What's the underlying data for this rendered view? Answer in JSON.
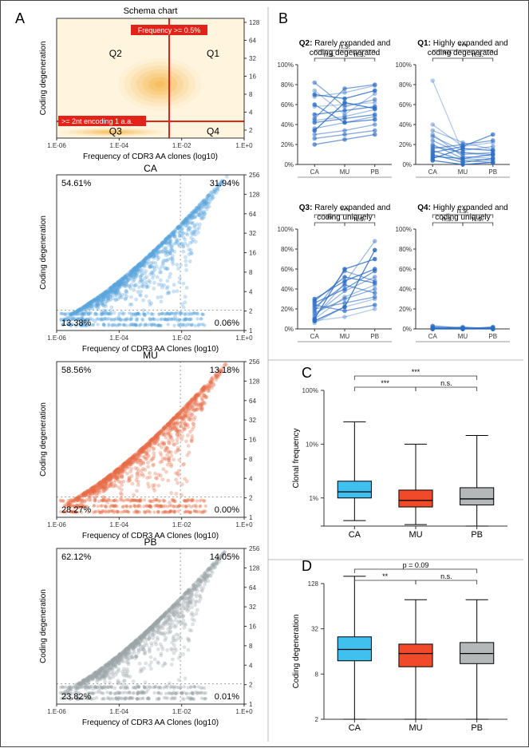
{
  "panelA": {
    "label": "A",
    "schema": {
      "title": "Schema chart",
      "xlabel": "Frequency of CDR3 AA clones (log10)",
      "ylabel": "Coding degeneration",
      "xticks": [
        "1.E-06",
        "1.E-04",
        "1.E-02",
        "1.E+0"
      ],
      "yticks": [
        "2",
        "4",
        "8",
        "16",
        "32",
        "64",
        "128"
      ],
      "vlabel": "Frequency >= 0.5%",
      "hlabel": ">= 2nt encoding 1 a.a.",
      "q": [
        "Q2",
        "Q1",
        "Q3",
        "Q4"
      ],
      "bg": "#fff5de",
      "blob_color": "#f5a623",
      "line_color": "#e2231a"
    },
    "scatters": [
      {
        "name": "CA",
        "color": "#5aa6dd",
        "pct": {
          "q2": "54.61%",
          "q1": "31.94%",
          "q3": "13.38%",
          "q4": "0.06%"
        }
      },
      {
        "name": "MU",
        "color": "#e66e46",
        "pct": {
          "q2": "58.56%",
          "q1": "13.18%",
          "q3": "28.27%",
          "q4": "0.00%"
        }
      },
      {
        "name": "PB",
        "color": "#9aa5a7",
        "pct": {
          "q2": "62.12%",
          "q1": "14.05%",
          "q3": "23.82%",
          "q4": "0.01%"
        }
      }
    ],
    "scatter_xlabel": "Frequency of CDR3 AA Clones (log10)",
    "scatter_ylabel": "Coding degeneration",
    "scatter_xticks": [
      "1.E-06",
      "1.E-04",
      "1.E-02",
      "1.E+0"
    ],
    "scatter_yticks": [
      "1",
      "2",
      "4",
      "8",
      "16",
      "32",
      "64",
      "128",
      "256"
    ],
    "guide_color": "#888"
  },
  "panelB": {
    "label": "B",
    "groups": [
      "CA",
      "MU",
      "PB"
    ],
    "yticks": [
      "0%",
      "20%",
      "40%",
      "60%",
      "80%",
      "100%"
    ],
    "line_color": "#2b6cc4",
    "dot_color": "#2b6cc4",
    "subs": [
      {
        "key": "Q2",
        "title1": "Q2: ",
        "title2": "Rarely expanded and",
        "title3": "coding degenerated",
        "sig": [
          "n.s.",
          "n.s.",
          "n.s."
        ],
        "series": [
          [
            58,
            60,
            62
          ],
          [
            74,
            50,
            71
          ],
          [
            68,
            72,
            79
          ],
          [
            44,
            48,
            55
          ],
          [
            36,
            42,
            48
          ],
          [
            30,
            34,
            40
          ],
          [
            82,
            58,
            65
          ],
          [
            26,
            30,
            34
          ],
          [
            46,
            76,
            80
          ],
          [
            20,
            25,
            30
          ],
          [
            42,
            46,
            50
          ],
          [
            50,
            54,
            58
          ],
          [
            60,
            42,
            45
          ],
          [
            70,
            66,
            74
          ],
          [
            34,
            62,
            56
          ]
        ]
      },
      {
        "key": "Q1",
        "title1": "Q1: ",
        "title2": "Highly expanded and",
        "title3": "coding degenerated",
        "sig": [
          "***",
          "***",
          "n.s."
        ],
        "series": [
          [
            84,
            12,
            8
          ],
          [
            40,
            18,
            22
          ],
          [
            34,
            22,
            15
          ],
          [
            30,
            8,
            6
          ],
          [
            28,
            14,
            18
          ],
          [
            24,
            10,
            12
          ],
          [
            20,
            6,
            4
          ],
          [
            18,
            12,
            10
          ],
          [
            16,
            20,
            24
          ],
          [
            14,
            4,
            2
          ],
          [
            12,
            18,
            30
          ],
          [
            10,
            2,
            6
          ],
          [
            8,
            6,
            10
          ],
          [
            6,
            16,
            14
          ],
          [
            4,
            0,
            2
          ]
        ]
      },
      {
        "key": "Q3",
        "title1": "Q3: ",
        "title2": "Rarely expanded and",
        "title3": "coding uniquely",
        "sig": [
          "***",
          "**",
          "n.s."
        ],
        "series": [
          [
            8,
            12,
            20
          ],
          [
            6,
            22,
            30
          ],
          [
            10,
            32,
            44
          ],
          [
            12,
            46,
            88
          ],
          [
            14,
            38,
            52
          ],
          [
            16,
            30,
            40
          ],
          [
            18,
            58,
            48
          ],
          [
            20,
            26,
            32
          ],
          [
            22,
            44,
            36
          ],
          [
            24,
            18,
            24
          ],
          [
            26,
            40,
            58
          ],
          [
            28,
            52,
            46
          ],
          [
            30,
            48,
            60
          ],
          [
            10,
            60,
            70
          ],
          [
            8,
            22,
            79
          ]
        ]
      },
      {
        "key": "Q4",
        "title1": "Q4: ",
        "title2": "Highly expanded and",
        "title3": "coding uniquely",
        "sig": [
          "n.s.",
          "n.s.",
          "n.s."
        ],
        "series": [
          [
            0,
            0,
            0
          ],
          [
            1,
            0,
            0
          ],
          [
            0,
            1,
            0
          ],
          [
            2,
            0,
            1
          ],
          [
            0,
            2,
            0
          ],
          [
            1,
            1,
            1
          ],
          [
            0,
            0,
            2
          ],
          [
            3,
            1,
            0
          ],
          [
            0,
            0,
            0
          ],
          [
            1,
            0,
            1
          ]
        ]
      }
    ]
  },
  "panelC": {
    "label": "C",
    "ylabel": "Clonal frequency",
    "yticks": [
      "1%",
      "10%",
      "100%"
    ],
    "groups": [
      "CA",
      "MU",
      "PB"
    ],
    "sig": [
      "***",
      "***",
      "n.s."
    ],
    "boxes": [
      {
        "name": "CA",
        "color": "#3fc0ef",
        "min": 0.38,
        "q1": 1.0,
        "med": 1.3,
        "q3": 2.05,
        "max": 26
      },
      {
        "name": "MU",
        "color": "#f04a2b",
        "min": 0.32,
        "q1": 0.68,
        "med": 0.9,
        "q3": 1.4,
        "max": 10
      },
      {
        "name": "PB",
        "color": "#b4b8b9",
        "min": 0.3,
        "q1": 0.74,
        "med": 0.96,
        "q3": 1.55,
        "max": 14.5
      }
    ]
  },
  "panelD": {
    "label": "D",
    "ylabel": "Coding degeneration",
    "yticks": [
      "2",
      "8",
      "32",
      "128"
    ],
    "ytick_vals": [
      2,
      8,
      32,
      128
    ],
    "groups": [
      "CA",
      "MU",
      "PB"
    ],
    "sig": [
      "p = 0.09",
      "**",
      "n.s."
    ],
    "boxes": [
      {
        "name": "CA",
        "color": "#3fc0ef",
        "min": 2,
        "q1": 12,
        "med": 17,
        "q3": 25,
        "max": 160
      },
      {
        "name": "MU",
        "color": "#f04a2b",
        "min": 2,
        "q1": 10,
        "med": 15,
        "q3": 20,
        "max": 78
      },
      {
        "name": "PB",
        "color": "#b4b8b9",
        "min": 2,
        "q1": 11,
        "med": 15,
        "q3": 21,
        "max": 78
      }
    ]
  }
}
